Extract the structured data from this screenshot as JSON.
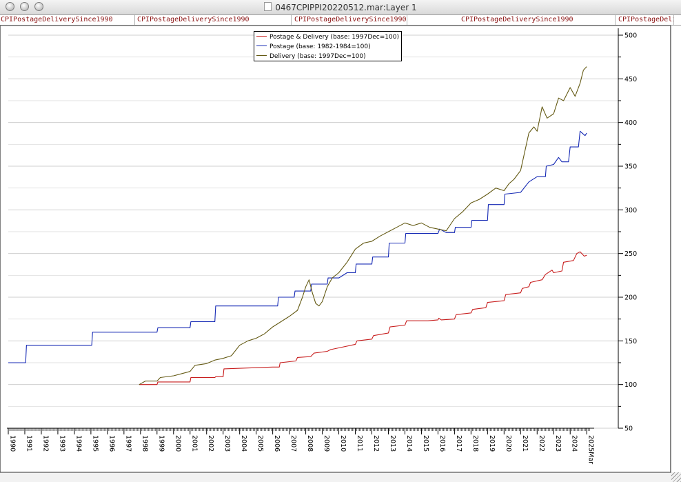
{
  "window": {
    "title": "0467CPIPPI20220512.mar:Layer 1"
  },
  "tabs": [
    {
      "label": "CPIPostageDeliverySince1990"
    },
    {
      "label": "CPIPostageDeliverySince1990"
    },
    {
      "label": "CPIPostageDeliverySince1990"
    },
    {
      "label": "CPIPostageDeliverySince1990"
    },
    {
      "label": "CPIPostageDeli"
    }
  ],
  "icons": {
    "close": "close-button-icon",
    "minimize": "minimize-button-icon",
    "zoom": "zoom-button-icon",
    "document": "document-proxy-icon",
    "resize": "resize-grip-icon"
  },
  "chart_data": {
    "type": "line",
    "title": "",
    "xlabel": "",
    "ylabel": "",
    "y_axis_side": "right",
    "ylim": [
      50,
      500
    ],
    "yticks": [
      50,
      100,
      150,
      200,
      250,
      300,
      350,
      400,
      450,
      500
    ],
    "xlim": [
      1990.0,
      2025.2
    ],
    "grid": "horizontal",
    "legend_position": "top-center",
    "x_tick_labels": [
      "1990",
      "1991",
      "1992",
      "1993",
      "1994",
      "1995",
      "1996",
      "1997",
      "1998",
      "1999",
      "2000",
      "2001",
      "2002",
      "2003",
      "2004",
      "2005",
      "2006",
      "2007",
      "2008",
      "2009",
      "2010",
      "2011",
      "2012",
      "2013",
      "2014",
      "2015",
      "2016",
      "2017",
      "2018",
      "2019",
      "2020",
      "2021",
      "2022",
      "2023",
      "2024",
      "2025Mar"
    ],
    "series": [
      {
        "name": "Postage & Delivery (base: 1997Dec=100)",
        "color": "#c81e1e",
        "points": [
          [
            1997.92,
            100
          ],
          [
            1999.0,
            100
          ],
          [
            1999.05,
            103
          ],
          [
            2001.0,
            103
          ],
          [
            2001.05,
            108
          ],
          [
            2002.5,
            108
          ],
          [
            2002.55,
            109
          ],
          [
            2003.0,
            109
          ],
          [
            2003.05,
            118
          ],
          [
            2006.0,
            120
          ],
          [
            2006.4,
            120
          ],
          [
            2006.45,
            125
          ],
          [
            2007.4,
            127
          ],
          [
            2007.5,
            131
          ],
          [
            2008.3,
            132
          ],
          [
            2008.5,
            136
          ],
          [
            2009.3,
            138
          ],
          [
            2009.5,
            140
          ],
          [
            2010.0,
            142
          ],
          [
            2011.0,
            146
          ],
          [
            2011.1,
            150
          ],
          [
            2012.0,
            152
          ],
          [
            2012.1,
            156
          ],
          [
            2013.0,
            159
          ],
          [
            2013.1,
            166
          ],
          [
            2014.0,
            168
          ],
          [
            2014.1,
            173
          ],
          [
            2015.4,
            173
          ],
          [
            2016.0,
            174
          ],
          [
            2016.05,
            176
          ],
          [
            2016.2,
            174
          ],
          [
            2017.0,
            175
          ],
          [
            2017.1,
            180
          ],
          [
            2018.0,
            182
          ],
          [
            2018.1,
            186
          ],
          [
            2018.9,
            188
          ],
          [
            2019.0,
            194
          ],
          [
            2020.0,
            196
          ],
          [
            2020.1,
            203
          ],
          [
            2021.0,
            205
          ],
          [
            2021.1,
            210
          ],
          [
            2021.5,
            212
          ],
          [
            2021.6,
            217
          ],
          [
            2022.3,
            220
          ],
          [
            2022.5,
            226
          ],
          [
            2022.9,
            231
          ],
          [
            2023.0,
            228
          ],
          [
            2023.5,
            230
          ],
          [
            2023.6,
            240
          ],
          [
            2024.2,
            242
          ],
          [
            2024.4,
            250
          ],
          [
            2024.6,
            252
          ],
          [
            2024.85,
            247
          ],
          [
            2025.0,
            248
          ]
        ]
      },
      {
        "name": "Postage (base: 1982-1984=100)",
        "color": "#1428b4",
        "points": [
          [
            1990.0,
            125
          ],
          [
            1991.05,
            125
          ],
          [
            1991.1,
            145
          ],
          [
            1995.05,
            145
          ],
          [
            1995.1,
            160
          ],
          [
            1999.0,
            160
          ],
          [
            1999.05,
            165
          ],
          [
            2001.0,
            165
          ],
          [
            2001.05,
            172
          ],
          [
            2002.5,
            172
          ],
          [
            2002.55,
            190
          ],
          [
            2006.3,
            190
          ],
          [
            2006.35,
            200
          ],
          [
            2007.3,
            200
          ],
          [
            2007.35,
            207
          ],
          [
            2008.3,
            207
          ],
          [
            2008.35,
            215
          ],
          [
            2009.3,
            215
          ],
          [
            2009.35,
            222
          ],
          [
            2010.0,
            222
          ],
          [
            2010.5,
            228
          ],
          [
            2011.0,
            228
          ],
          [
            2011.05,
            238
          ],
          [
            2012.0,
            238
          ],
          [
            2012.05,
            246
          ],
          [
            2013.0,
            246
          ],
          [
            2013.05,
            262
          ],
          [
            2014.0,
            262
          ],
          [
            2014.05,
            273
          ],
          [
            2016.0,
            273
          ],
          [
            2016.1,
            278
          ],
          [
            2016.5,
            274
          ],
          [
            2017.0,
            274
          ],
          [
            2017.05,
            280
          ],
          [
            2018.0,
            280
          ],
          [
            2018.05,
            288
          ],
          [
            2019.0,
            288
          ],
          [
            2019.05,
            306
          ],
          [
            2020.0,
            306
          ],
          [
            2020.05,
            318
          ],
          [
            2021.0,
            320
          ],
          [
            2021.5,
            332
          ],
          [
            2022.0,
            338
          ],
          [
            2022.5,
            338
          ],
          [
            2022.55,
            350
          ],
          [
            2023.0,
            352
          ],
          [
            2023.3,
            360
          ],
          [
            2023.5,
            355
          ],
          [
            2023.9,
            355
          ],
          [
            2024.0,
            372
          ],
          [
            2024.5,
            372
          ],
          [
            2024.6,
            390
          ],
          [
            2024.9,
            385
          ],
          [
            2025.0,
            388
          ]
        ]
      },
      {
        "name": "Delivery (base: 1997Dec=100)",
        "color": "#645a14",
        "points": [
          [
            1997.92,
            100
          ],
          [
            1998.3,
            104
          ],
          [
            1999.0,
            104
          ],
          [
            1999.2,
            108
          ],
          [
            2000.0,
            110
          ],
          [
            2001.0,
            115
          ],
          [
            2001.3,
            122
          ],
          [
            2002.0,
            124
          ],
          [
            2002.5,
            128
          ],
          [
            2003.0,
            130
          ],
          [
            2003.5,
            133
          ],
          [
            2004.0,
            145
          ],
          [
            2004.5,
            150
          ],
          [
            2005.0,
            153
          ],
          [
            2005.5,
            158
          ],
          [
            2006.0,
            166
          ],
          [
            2006.5,
            172
          ],
          [
            2007.0,
            178
          ],
          [
            2007.5,
            185
          ],
          [
            2007.8,
            200
          ],
          [
            2008.0,
            212
          ],
          [
            2008.2,
            220
          ],
          [
            2008.4,
            205
          ],
          [
            2008.6,
            193
          ],
          [
            2008.8,
            190
          ],
          [
            2009.0,
            195
          ],
          [
            2009.3,
            212
          ],
          [
            2009.6,
            222
          ],
          [
            2010.0,
            228
          ],
          [
            2010.5,
            240
          ],
          [
            2011.0,
            255
          ],
          [
            2011.5,
            262
          ],
          [
            2012.0,
            264
          ],
          [
            2012.5,
            270
          ],
          [
            2013.0,
            275
          ],
          [
            2013.5,
            280
          ],
          [
            2014.0,
            285
          ],
          [
            2014.5,
            282
          ],
          [
            2015.0,
            285
          ],
          [
            2015.5,
            280
          ],
          [
            2016.0,
            278
          ],
          [
            2016.5,
            276
          ],
          [
            2017.0,
            290
          ],
          [
            2017.5,
            298
          ],
          [
            2018.0,
            308
          ],
          [
            2018.5,
            312
          ],
          [
            2019.0,
            318
          ],
          [
            2019.5,
            325
          ],
          [
            2020.0,
            322
          ],
          [
            2020.3,
            330
          ],
          [
            2020.6,
            335
          ],
          [
            2021.0,
            345
          ],
          [
            2021.5,
            388
          ],
          [
            2021.8,
            395
          ],
          [
            2022.0,
            390
          ],
          [
            2022.3,
            418
          ],
          [
            2022.6,
            405
          ],
          [
            2023.0,
            410
          ],
          [
            2023.3,
            428
          ],
          [
            2023.6,
            425
          ],
          [
            2024.0,
            440
          ],
          [
            2024.3,
            430
          ],
          [
            2024.6,
            445
          ],
          [
            2024.8,
            460
          ],
          [
            2025.0,
            464
          ]
        ]
      }
    ]
  }
}
